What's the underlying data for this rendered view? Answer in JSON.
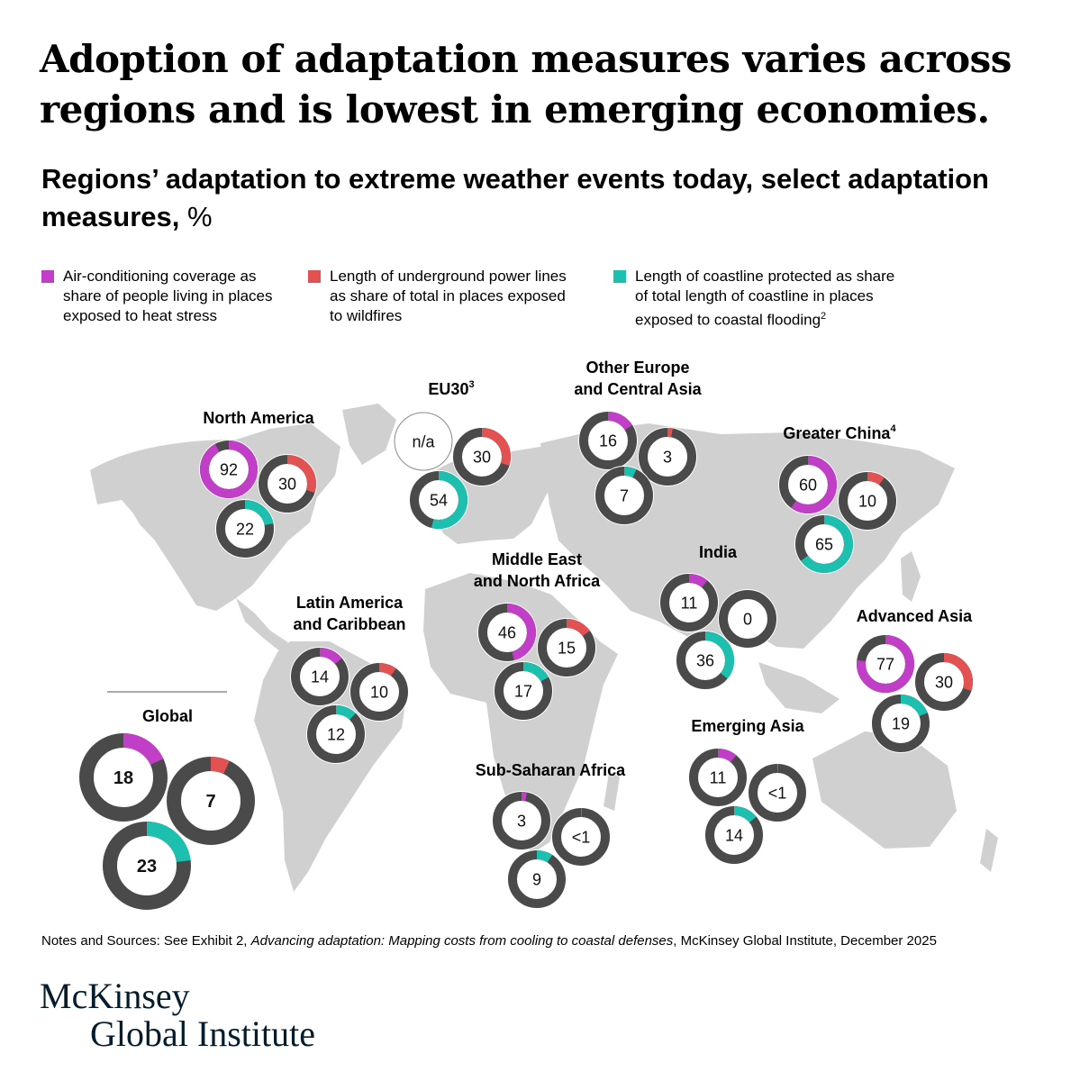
{
  "title": "Adoption of adaptation measures varies across regions and is lowest in emerging economies.",
  "subtitle": "Regions’ adaptation to extreme weather events today, select adaptation measures,",
  "subtitle_unit": "%",
  "legend": [
    {
      "label": "Air-conditioning coverage as\nshare of people living in places\nexposed to heat stress",
      "sup": "",
      "color": "#c03fc6"
    },
    {
      "label": "Length of underground power lines\nas share of total in places exposed\nto wildfires",
      "sup": "",
      "color": "#e25252"
    },
    {
      "label": "Length of coastline protected as share\nof total length of coastline in places\nexposed to coastal flooding",
      "sup": "2",
      "color": "#1dbfae"
    }
  ],
  "notes_prefix": "Notes and Sources: See Exhibit 2, ",
  "notes_italic": "Advancing adaptation: Mapping costs from cooling to coastal defenses",
  "notes_suffix": ", McKinsey Global Institute, December 2025",
  "brand_line1": "McKinsey",
  "brand_line2": "Global Institute",
  "colors": {
    "ring": "#4a4a4a",
    "map": "#d0d0d0",
    "ac": "#c03fc6",
    "power": "#e25252",
    "coast": "#1dbfae"
  },
  "chart_data": {
    "type": "donut",
    "measures": [
      "Air-conditioning coverage",
      "Underground power lines",
      "Coastline protected"
    ],
    "regions": [
      {
        "name": "North America",
        "sup": "",
        "values": [
          {
            "label": "92",
            "value": 92
          },
          {
            "label": "30",
            "value": 30
          },
          {
            "label": "22",
            "value": 22
          }
        ]
      },
      {
        "name": "EU30",
        "sup": "3",
        "values": [
          {
            "label": "n/a",
            "value": null
          },
          {
            "label": "30",
            "value": 30
          },
          {
            "label": "54",
            "value": 54
          }
        ]
      },
      {
        "name": "Other Europe\nand Central Asia",
        "sup": "",
        "values": [
          {
            "label": "16",
            "value": 16
          },
          {
            "label": "3",
            "value": 3
          },
          {
            "label": "7",
            "value": 7
          }
        ]
      },
      {
        "name": "Greater China",
        "sup": "4",
        "values": [
          {
            "label": "60",
            "value": 60
          },
          {
            "label": "10",
            "value": 10
          },
          {
            "label": "65",
            "value": 65
          }
        ]
      },
      {
        "name": "India",
        "sup": "",
        "values": [
          {
            "label": "11",
            "value": 11
          },
          {
            "label": "0",
            "value": 0
          },
          {
            "label": "36",
            "value": 36
          }
        ]
      },
      {
        "name": "Middle East\nand North Africa",
        "sup": "",
        "values": [
          {
            "label": "46",
            "value": 46
          },
          {
            "label": "15",
            "value": 15
          },
          {
            "label": "17",
            "value": 17
          }
        ]
      },
      {
        "name": "Latin America\nand Caribbean",
        "sup": "",
        "values": [
          {
            "label": "14",
            "value": 14
          },
          {
            "label": "10",
            "value": 10
          },
          {
            "label": "12",
            "value": 12
          }
        ]
      },
      {
        "name": "Advanced Asia",
        "sup": "",
        "values": [
          {
            "label": "77",
            "value": 77
          },
          {
            "label": "30",
            "value": 30
          },
          {
            "label": "19",
            "value": 19
          }
        ]
      },
      {
        "name": "Emerging Asia",
        "sup": "",
        "values": [
          {
            "label": "11",
            "value": 11
          },
          {
            "label": "<1",
            "value": 0.5
          },
          {
            "label": "14",
            "value": 14
          }
        ]
      },
      {
        "name": "Sub-Saharan Africa",
        "sup": "",
        "values": [
          {
            "label": "3",
            "value": 3
          },
          {
            "label": "<1",
            "value": 0.5
          },
          {
            "label": "9",
            "value": 9
          }
        ]
      },
      {
        "name": "Global",
        "sup": "",
        "values": [
          {
            "label": "18",
            "value": 18
          },
          {
            "label": "7",
            "value": 7
          },
          {
            "label": "23",
            "value": 23
          }
        ]
      }
    ]
  }
}
